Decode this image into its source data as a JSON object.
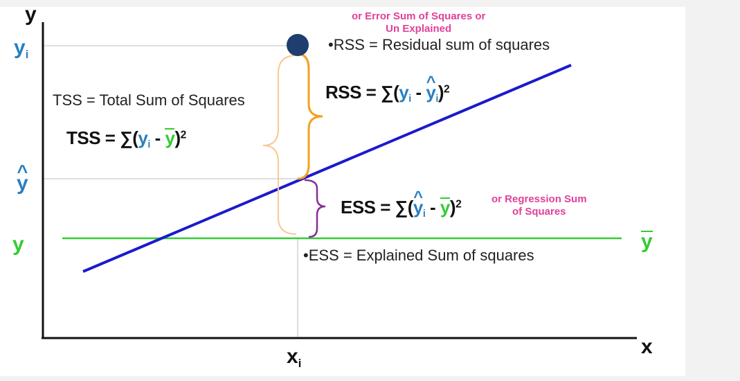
{
  "axes": {
    "y_label": "y",
    "x_label": "x"
  },
  "ticks": {
    "y_i": "y",
    "y_i_sub": "i",
    "y_hat": "y",
    "y_bar": "y",
    "x_i": "x",
    "x_i_sub": "i",
    "y_bar_right": "y"
  },
  "annotations": {
    "error_alias_line1": "or Error Sum of Squares or",
    "error_alias_line2": "Un Explained",
    "rss_definition": "•RSS = Residual sum of squares",
    "rss_lhs": "RSS = ",
    "tss_definition": "TSS = Total Sum of Squares",
    "tss_lhs": "TSS = ",
    "ess_lhs": "ESS = ",
    "regression_alias_line1": "or Regression Sum",
    "regression_alias_line2": "of Squares",
    "ess_definition": "•ESS = Explained Sum of squares"
  },
  "symbols": {
    "sum": "∑(",
    "y": "y",
    "i": "i",
    "minus": " - ",
    "close_sq": ")",
    "power": "2"
  },
  "colors": {
    "regression_line": "#1a1acc",
    "mean_line": "#33cc33",
    "rss_brace": "#f5a020",
    "tss_brace": "#f8c890",
    "ess_brace": "#8a2a9a",
    "point": "#1f3d6e",
    "alias_text": "#e0409a",
    "subscript_blue": "#2a7fc0"
  }
}
